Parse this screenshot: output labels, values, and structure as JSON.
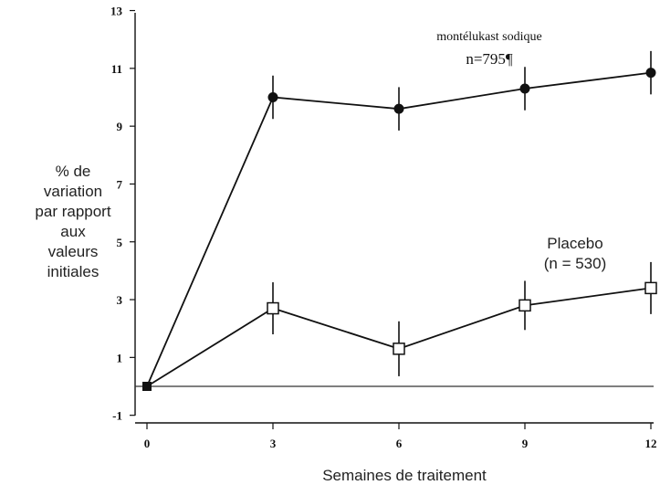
{
  "chart_data": {
    "type": "line",
    "xlabel": "Semaines de traitement",
    "ylabel_lines": [
      "% de",
      "variation",
      "par rapport",
      "aux",
      "valeurs",
      "initiales"
    ],
    "x_ticks": [
      "0",
      "3",
      "6",
      "9",
      "12"
    ],
    "y_ticks": [
      "-1",
      "1",
      "3",
      "5",
      "7",
      "9",
      "11",
      "13"
    ],
    "xlim": [
      0,
      12
    ],
    "ylim": [
      -1,
      13
    ],
    "reference_line_y": 0,
    "grid": false,
    "series": [
      {
        "name_lines": [
          "montélukast sodique",
          "n=795¶"
        ],
        "marker": "filled-circle",
        "color": "#111111",
        "x": [
          0,
          3,
          6,
          9,
          12
        ],
        "y": [
          0,
          10.0,
          9.6,
          10.3,
          10.85
        ],
        "err": [
          0,
          0.75,
          0.75,
          0.75,
          0.75
        ]
      },
      {
        "name_lines": [
          "Placebo",
          "(n = 530)"
        ],
        "marker": "open-square",
        "color": "#111111",
        "x": [
          0,
          3,
          6,
          9,
          12
        ],
        "y": [
          0,
          2.7,
          1.3,
          2.8,
          3.4
        ],
        "err": [
          0,
          0.9,
          0.95,
          0.85,
          0.9
        ]
      }
    ]
  }
}
